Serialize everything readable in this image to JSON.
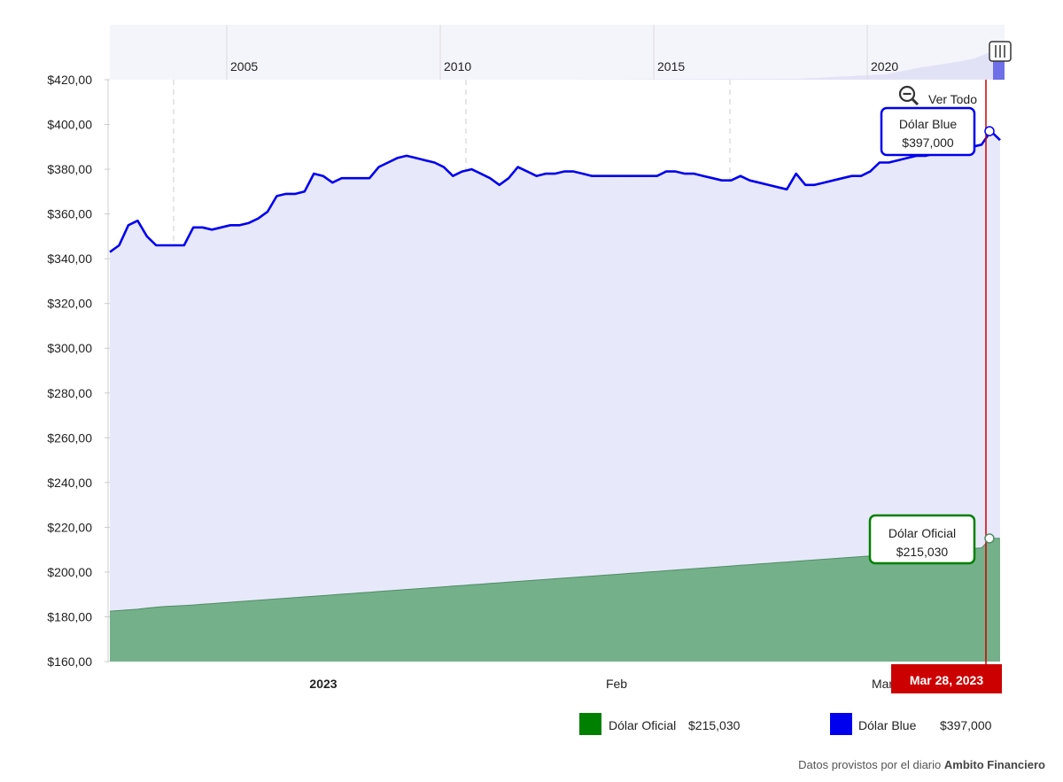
{
  "chart_data": {
    "type": "area",
    "y_axis": {
      "ylim": [
        160,
        420
      ],
      "ticks": [
        "$160,00",
        "$180,00",
        "$200,00",
        "$220,00",
        "$240,00",
        "$260,00",
        "$280,00",
        "$300,00",
        "$320,00",
        "$340,00",
        "$360,00",
        "$380,00",
        "$400,00",
        "$420,00"
      ]
    },
    "x_axis": {
      "tick_labels": [
        {
          "label": "2023",
          "bold": true
        },
        {
          "label": "Feb",
          "bold": false
        },
        {
          "label": "Mar",
          "bold": false
        }
      ]
    },
    "navigator_years": [
      "2005",
      "2010",
      "2015",
      "2020"
    ],
    "series": [
      {
        "name": "Dólar Blue",
        "color": "#0000ee",
        "fill": "#e8e8fb",
        "values": [
          343,
          346,
          355,
          357,
          350,
          346,
          346,
          346,
          346,
          354,
          354,
          353,
          354,
          355,
          355,
          356,
          358,
          361,
          368,
          369,
          369,
          370,
          378,
          377,
          374,
          376,
          376,
          376,
          376,
          381,
          383,
          385,
          386,
          385,
          384,
          383,
          381,
          377,
          379,
          380,
          378,
          376,
          373,
          376,
          381,
          379,
          377,
          378,
          378,
          379,
          379,
          378,
          377,
          377,
          377,
          377,
          377,
          377,
          377,
          377,
          379,
          379,
          378,
          378,
          377,
          376,
          375,
          375,
          377,
          375,
          374,
          373,
          372,
          371,
          378,
          373,
          373,
          374,
          375,
          376,
          377,
          377,
          379,
          383,
          383,
          384,
          385,
          386,
          386,
          387,
          388,
          388,
          389,
          390,
          391,
          397,
          393
        ]
      },
      {
        "name": "Dólar Oficial",
        "color": "#008000",
        "fill": "#74b08a",
        "values": [
          182.5,
          182.8,
          183.1,
          183.4,
          183.9,
          184.3,
          184.6,
          184.8,
          185.0,
          185.3,
          185.6,
          185.9,
          186.2,
          186.5,
          186.8,
          187.1,
          187.4,
          187.7,
          188.0,
          188.3,
          188.6,
          188.9,
          189.2,
          189.5,
          189.8,
          190.1,
          190.4,
          190.7,
          191.0,
          191.3,
          191.6,
          191.9,
          192.2,
          192.5,
          192.8,
          193.1,
          193.4,
          193.7,
          194.0,
          194.3,
          194.6,
          194.9,
          195.2,
          195.5,
          195.8,
          196.1,
          196.4,
          196.7,
          197.0,
          197.3,
          197.6,
          197.9,
          198.2,
          198.5,
          198.8,
          199.1,
          199.4,
          199.7,
          200.0,
          200.3,
          200.6,
          200.9,
          201.2,
          201.5,
          201.8,
          202.1,
          202.4,
          202.7,
          203.0,
          203.3,
          203.6,
          203.9,
          204.2,
          204.5,
          204.8,
          205.1,
          205.4,
          205.7,
          206.0,
          206.3,
          206.6,
          206.9,
          207.2,
          207.5,
          207.8,
          208.1,
          208.4,
          208.7,
          209.0,
          209.3,
          209.6,
          209.9,
          210.2,
          210.5,
          210.8,
          215.03,
          215.03
        ]
      }
    ],
    "tooltips": [
      {
        "series": "Dólar Blue",
        "title": "Dólar Blue",
        "value": "$397,000",
        "border": "#0000ee"
      },
      {
        "series": "Dólar Oficial",
        "title": "Dólar Oficial",
        "value": "$215,030",
        "border": "#008000"
      }
    ],
    "crosshair_date": "Mar 28, 2023",
    "legend": [
      {
        "label": "Dólar Oficial",
        "value": "$215,030",
        "color": "#008000"
      },
      {
        "label": "Dólar Blue",
        "value": "$397,000",
        "color": "#0000ee"
      }
    ],
    "grid": true
  },
  "zoom": {
    "label": "Ver Todo",
    "icon": "zoom-out-icon"
  },
  "credit": {
    "prefix": "Datos provistos por el diario ",
    "source": "Ambito Financiero"
  }
}
